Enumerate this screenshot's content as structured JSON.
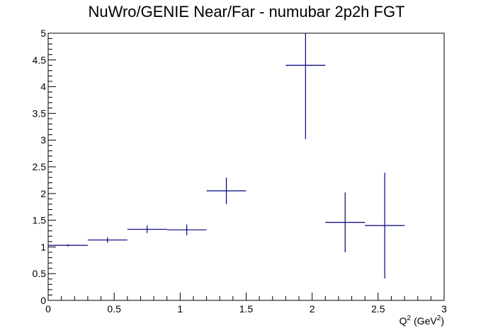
{
  "chart_data": {
    "type": "scatter",
    "title": "NuWro/GENIE Near/Far - numubar 2p2h FGT",
    "xlabel": "Q",
    "xlabel_sup": "2",
    "xlabel_unit_pre": "(GeV",
    "xlabel_unit_sup": "2",
    "xlabel_unit_post": ")",
    "ylabel": "",
    "xlim": [
      0,
      3
    ],
    "ylim": [
      0,
      5
    ],
    "x_ticks": [
      "0",
      "0.5",
      "1",
      "1.5",
      "2",
      "2.5",
      "3"
    ],
    "y_ticks": [
      "0",
      "0.5",
      "1",
      "1.5",
      "2",
      "2.5",
      "3",
      "3.5",
      "4",
      "4.5",
      "5"
    ],
    "grid": false,
    "series": [
      {
        "color": "#000080",
        "points": [
          {
            "x": 0.15,
            "xerr": 0.15,
            "y": 1.03,
            "yerr": 0.02
          },
          {
            "x": 0.45,
            "xerr": 0.15,
            "y": 1.13,
            "yerr": 0.05
          },
          {
            "x": 0.75,
            "xerr": 0.15,
            "y": 1.33,
            "yerr": 0.07
          },
          {
            "x": 1.05,
            "xerr": 0.15,
            "y": 1.32,
            "yerr": 0.1
          },
          {
            "x": 1.35,
            "xerr": 0.15,
            "y": 2.05,
            "yerr": 0.25
          },
          {
            "x": 1.95,
            "xerr": 0.15,
            "y": 4.4,
            "yerr": 1.38
          },
          {
            "x": 2.25,
            "xerr": 0.15,
            "y": 1.46,
            "yerr": 0.56
          },
          {
            "x": 2.55,
            "xerr": 0.15,
            "y": 1.4,
            "yerr": 0.99
          }
        ]
      }
    ]
  }
}
